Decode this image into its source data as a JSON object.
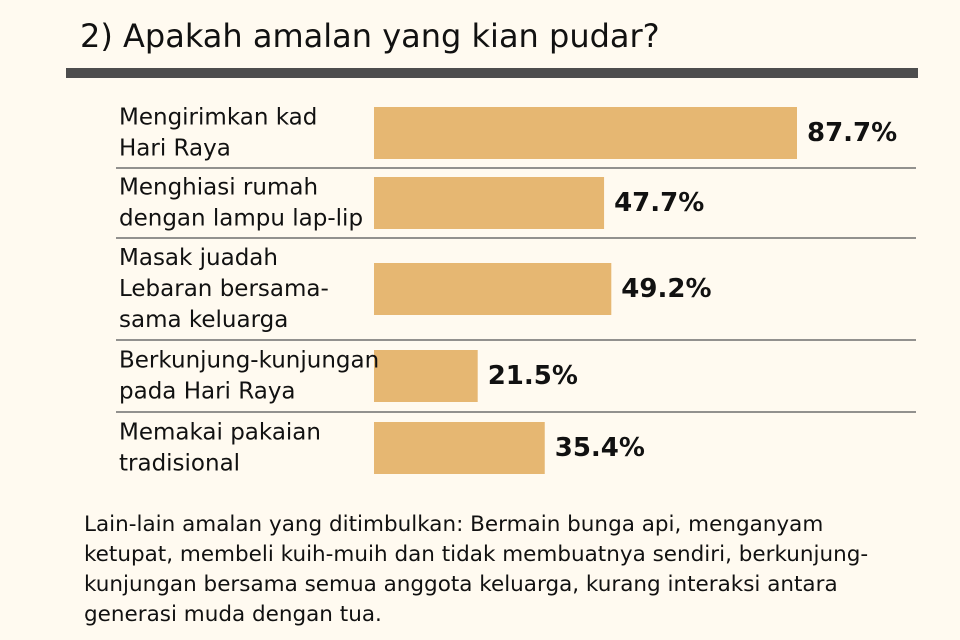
{
  "title": "2) Apakah amalan yang kian pudar?",
  "chart_data": {
    "type": "bar",
    "orientation": "horizontal",
    "title": "2) Apakah amalan yang kian pudar?",
    "categories": [
      [
        "Mengirimkan kad",
        "Hari Raya"
      ],
      [
        "Menghiasi rumah",
        "dengan lampu lap-lip"
      ],
      [
        "Masak juadah",
        "Lebaran bersama-",
        "sama keluarga"
      ],
      [
        "Berkunjung-kunjungan",
        "pada Hari Raya"
      ],
      [
        "Memakai pakaian",
        "tradisional"
      ]
    ],
    "values": [
      87.7,
      47.7,
      49.2,
      21.5,
      35.4
    ],
    "value_labels": [
      "87.7%",
      "47.7%",
      "49.2%",
      "21.5%",
      "35.4%"
    ],
    "xlim": [
      0,
      100
    ],
    "xlabel": "",
    "ylabel": "",
    "grid": false,
    "bar_color": "#e6b772",
    "separator_color": "#6e6e6e"
  },
  "footnote": "Lain-lain amalan yang ditimbulkan: Bermain bunga api, menganyam ketupat, membeli kuih-muih dan tidak membuatnya sendiri, berkunjung-kunjungan bersama semua anggota keluarga, kurang interaksi antara generasi muda dengan tua."
}
